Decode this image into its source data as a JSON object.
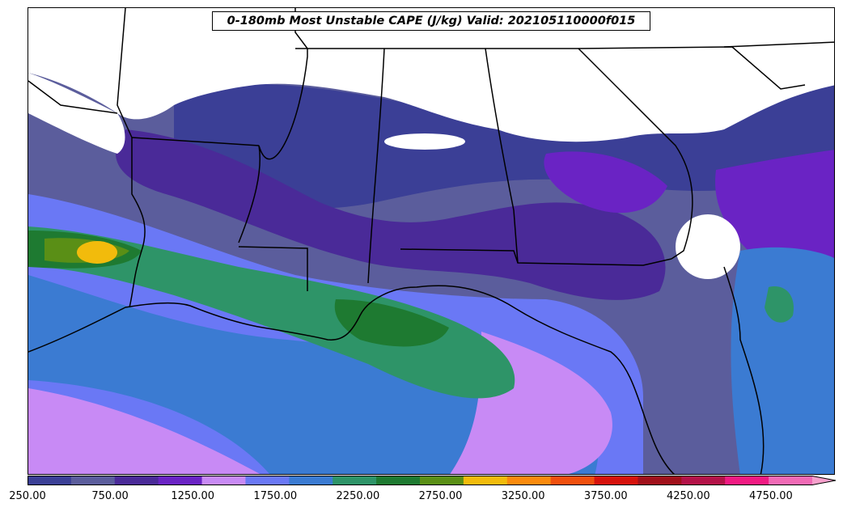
{
  "map": {
    "title": "0-180mb Most Unstable CAPE (J/kg) Valid: 202105110000f015",
    "region": "Southeastern United States and Gulf of Mexico",
    "field": "Most Unstable CAPE",
    "units": "J/kg"
  },
  "colorbar": {
    "min": 250,
    "max": 5000,
    "step": 250,
    "extend": "max",
    "colors": [
      "#3b3f96",
      "#5b5d9c",
      "#4a2a98",
      "#6a23c4",
      "#c88af5",
      "#6a78f5",
      "#3b7bd2",
      "#2e9468",
      "#1e7a31",
      "#5a8f16",
      "#f2bb0c",
      "#fa8a0d",
      "#f04f0d",
      "#d6120c",
      "#a0101a",
      "#b31248",
      "#f01a82",
      "#f06ab5",
      "#f6a0cc"
    ],
    "tick_labels": [
      "250.00",
      "750.00",
      "1250.00",
      "1750.00",
      "2250.00",
      "2750.00",
      "3250.00",
      "3750.00",
      "4250.00",
      "4750.00"
    ],
    "tick_values": [
      250,
      750,
      1250,
      1750,
      2250,
      2750,
      3250,
      3750,
      4250,
      4750
    ]
  }
}
